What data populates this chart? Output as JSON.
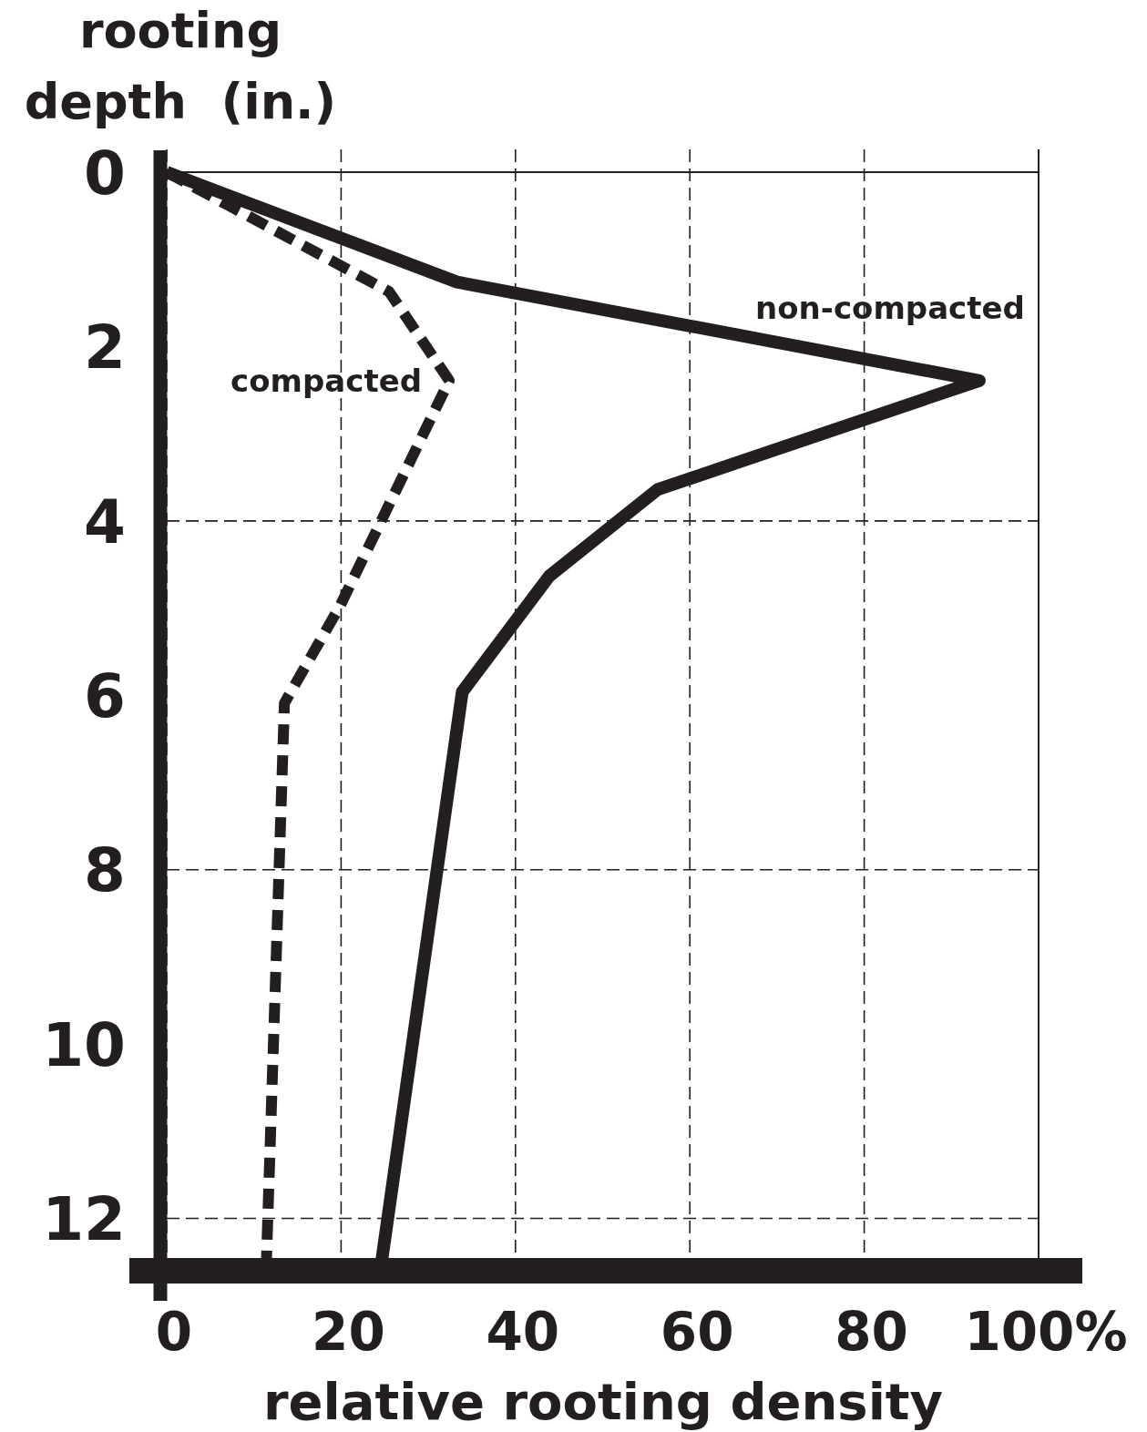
{
  "chart_data": {
    "type": "line",
    "xlabel": "relative rooting density",
    "ylabel": "rooting depth (in.)",
    "xlim": [
      0,
      100
    ],
    "xticks": [
      0,
      20,
      40,
      60,
      80,
      {
        "value": 100,
        "label": "100%"
      }
    ],
    "ylim": [
      12.6,
      0
    ],
    "yticks": [
      0,
      2,
      4,
      6,
      8,
      10,
      12
    ],
    "grid": "x",
    "marker": "none",
    "ref_lines": [
      {
        "axis": "y",
        "value": 4,
        "line_style": "dashed"
      },
      {
        "axis": "y",
        "value": 8,
        "line_style": "dashed"
      },
      {
        "axis": "y",
        "value": 12,
        "line_style": "dashed"
      }
    ],
    "series": [
      {
        "name": "non-compacted",
        "color": "#231f20",
        "line_style": "solid",
        "x": [
          0,
          33.3,
          93.2,
          56.3,
          43.9,
          33.9,
          24.5
        ],
        "values": [
          0,
          1.26,
          2.39,
          3.64,
          4.63,
          5.96,
          12.6
        ]
      },
      {
        "name": "compacted",
        "color": "#231f20",
        "line_style": "dashed",
        "x": [
          0,
          25.5,
          32.4,
          19.9,
          13.5,
          11.4
        ],
        "values": [
          0,
          1.37,
          2.39,
          4.97,
          6.09,
          12.6
        ]
      }
    ]
  }
}
